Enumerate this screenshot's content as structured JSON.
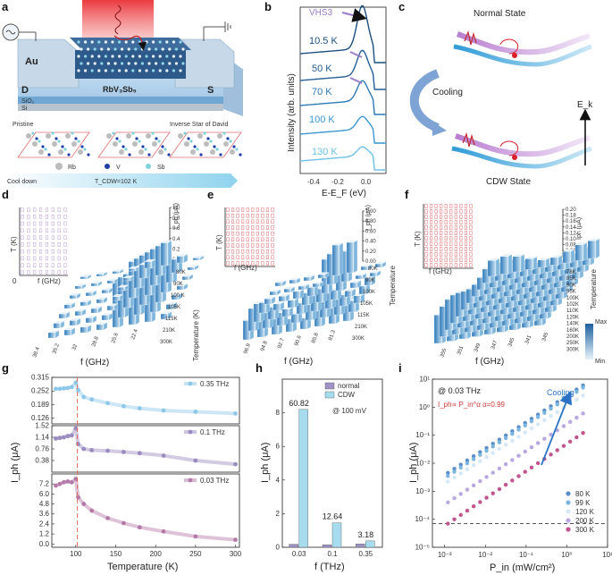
{
  "panel_letters": [
    "a",
    "b",
    "c",
    "d",
    "e",
    "f",
    "g",
    "h",
    "i"
  ],
  "panel_a": {
    "electrode_label": "Au",
    "drain": "D",
    "source": "S",
    "material": "RbV₃Sb₅",
    "substrate1": "SiO₂",
    "substrate2": "Si",
    "pristine": "Pristine",
    "isd": "Inverse Star of David",
    "legend": [
      "Rb",
      "V",
      "Sb"
    ],
    "cool": "Cool down",
    "tcdw": "T_CDW=102 K"
  },
  "panel_b": {
    "annotation": "VHS3",
    "temps": [
      "10.5 K",
      "50 K",
      "70 K",
      "100 K",
      "130 K"
    ],
    "ylabel": "Intensity (arb. units)",
    "xlabel": "E-E_F (eV)",
    "xticks": [
      "-0.4",
      "-0.2",
      "0.0"
    ]
  },
  "panel_c": {
    "top": "Normal State",
    "middle": "Cooling",
    "bottom": "CDW State",
    "ek": "E_k"
  },
  "panel_d": {
    "yaxis": "T (K)",
    "xaxis": "f (GHz)",
    "zero": "0",
    "zlabel": "I_ph (μA)",
    "zticks": [
      "0.0",
      "0.2",
      "0.4",
      "0.6",
      "0.8",
      "1.0"
    ],
    "temp_label": "Temperature (K)",
    "temps": [
      "80K",
      "90K",
      "100 K",
      "105K",
      "115K",
      "210K",
      "300K"
    ],
    "freqs": [
      "38.4",
      "35.2",
      "32",
      "28.8",
      "25.6",
      "22.4"
    ],
    "flabel": "f (GHz)"
  },
  "panel_e": {
    "yaxis": "T (K)",
    "xaxis": "f (GHz)",
    "zlabel": "I_ph (μA)",
    "zticks": [
      "0.00",
      "0.20",
      "0.40",
      "0.60",
      "0.80",
      "1.00"
    ],
    "temp_label": "Temperature",
    "temps": [
      "80K",
      "90K",
      "100K",
      "105K",
      "115K",
      "210K",
      "300K"
    ],
    "freqs": [
      "96.9",
      "94.8",
      "92.7",
      "90.6",
      "85.8",
      "81.3"
    ],
    "flabel": "f (GHz)"
  },
  "panel_f": {
    "yaxis": "T (K)",
    "xaxis": "f (GHz)",
    "zlabel": "Iph (μA)",
    "zticks": [
      "0.00",
      "0.02",
      "0.04",
      "0.06",
      "0.08",
      "0.10",
      "0.12",
      "0.14",
      "0.16",
      "0.18",
      "0.20"
    ],
    "temp_label": "Temperature",
    "temps": [
      "78K",
      "85K",
      "90K",
      "95K",
      "100K",
      "102K",
      "110K",
      "120K",
      "140K",
      "160K",
      "200K",
      "250K",
      "300K"
    ],
    "freqs": [
      "355",
      "351",
      "349",
      "347",
      "345",
      "341",
      "345"
    ],
    "flabel": "f (GHz)",
    "cbar_max": "Max",
    "cbar_min": "Min"
  },
  "chart_data": [
    {
      "type": "line",
      "panel": "g",
      "xlabel": "Temperature (K)",
      "ylabel": "I_ph (μA)",
      "xlim": [
        70,
        305
      ],
      "xticks": [
        "100",
        "150",
        "200",
        "250",
        "300"
      ],
      "tcdw_line": 102,
      "series": [
        {
          "name": "0.35 THz",
          "color": "#8ec8e8",
          "ylim": [
            0.1,
            0.315
          ],
          "yticks": [
            "0.315",
            "0.252",
            "0.189",
            "0.126"
          ],
          "x": [
            75,
            80,
            85,
            90,
            95,
            100,
            103,
            110,
            120,
            140,
            160,
            180,
            210,
            250,
            300
          ],
          "y": [
            0.262,
            0.262,
            0.264,
            0.266,
            0.27,
            0.29,
            0.256,
            0.224,
            0.213,
            0.196,
            0.182,
            0.172,
            0.162,
            0.156,
            0.148
          ]
        },
        {
          "name": "0.1 THz",
          "color": "#9b8bbf",
          "ylim": [
            0.0,
            1.52
          ],
          "yticks": [
            "1.52",
            "1.14",
            "0.76",
            "0.38"
          ],
          "x": [
            75,
            80,
            85,
            90,
            95,
            100,
            103,
            110,
            120,
            140,
            160,
            180,
            210,
            250,
            300
          ],
          "y": [
            1.1,
            1.12,
            1.14,
            1.18,
            1.2,
            1.43,
            0.92,
            0.76,
            0.72,
            0.7,
            0.66,
            0.62,
            0.54,
            0.38,
            0.26
          ]
        },
        {
          "name": "0.03 THz",
          "color": "#b57ba8",
          "ylim": [
            -0.4,
            8.4
          ],
          "yticks": [
            "7.2",
            "6.0",
            "4.8",
            "3.6",
            "2.4",
            "1.2",
            "0.0"
          ],
          "x": [
            75,
            80,
            85,
            90,
            95,
            100,
            103,
            110,
            120,
            140,
            160,
            180,
            210,
            250,
            300
          ],
          "y": [
            7.0,
            7.2,
            7.4,
            7.5,
            7.4,
            7.8,
            5.6,
            4.8,
            4.0,
            3.1,
            2.5,
            2.0,
            1.5,
            0.9,
            0.5
          ]
        }
      ]
    },
    {
      "type": "bar",
      "panel": "h",
      "categories": [
        "0.03",
        "0.1",
        "0.35"
      ],
      "xlabel": "f (THz)",
      "ylabel": "I_ph (μA)",
      "ylim": [
        0,
        10
      ],
      "yticks": [
        "0",
        "2",
        "4",
        "6",
        "8"
      ],
      "annotation": "@ 100 mV",
      "series": [
        {
          "name": "normal",
          "color": "#9f93c6",
          "values": [
            0.18,
            0.15,
            0.2
          ]
        },
        {
          "name": "CDW",
          "color": "#a6dcee",
          "values": [
            8.2,
            1.45,
            0.38
          ]
        }
      ],
      "ratios": [
        "60.82",
        "12.64",
        "3.18"
      ]
    },
    {
      "type": "scatter",
      "panel": "i",
      "xlabel": "P_in (mW/cm²)",
      "ylabel": "I_ph (μA)",
      "xscale": "log",
      "yscale": "log",
      "xlim": [
        0.0005,
        10
      ],
      "ylim": [
        1e-05,
        10
      ],
      "xticks": [
        "10⁻³",
        "10⁻²",
        "10⁻¹",
        "10⁰",
        "10¹"
      ],
      "yticks": [
        "10¹",
        "10⁰",
        "10⁻¹",
        "10⁻²",
        "10⁻³",
        "10⁻⁴",
        "10⁻⁵"
      ],
      "freq": "@ 0.03 THz",
      "formula": "I_ph∝ P_in^α α=0.99",
      "arrow_label": "Cooling",
      "noise_floor": 7e-05,
      "series": [
        {
          "name": "80 K",
          "color": "#5b8fc7",
          "x0": 0.0012,
          "x1": 2.5,
          "y0": 0.0045,
          "y1": 6.0
        },
        {
          "name": "99 K",
          "color": "#7ab6df",
          "x0": 0.0012,
          "x1": 2.5,
          "y0": 0.0035,
          "y1": 5.0
        },
        {
          "name": "120 K",
          "color": "#d6e8f5",
          "x0": 0.0012,
          "x1": 2.5,
          "y0": 0.0022,
          "y1": 2.6
        },
        {
          "name": "200 K",
          "color": "#b8a7e0",
          "x0": 0.0012,
          "x1": 2.5,
          "y0": 0.0004,
          "y1": 0.6
        },
        {
          "name": "300 K",
          "color": "#c2558f",
          "x0": 0.0012,
          "x1": 2.5,
          "y0": 7e-05,
          "y1": 0.12
        }
      ]
    }
  ]
}
